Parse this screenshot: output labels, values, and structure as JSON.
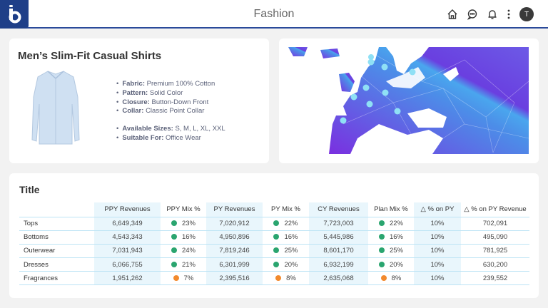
{
  "header": {
    "title": "Fashion",
    "avatar_initial": "T",
    "logo": "b"
  },
  "product": {
    "title": "Men’s Slim-Fit Casual Shirts",
    "features": [
      {
        "label": "Fabric:",
        "value": "Premium 100% Cotton"
      },
      {
        "label": "Pattern:",
        "value": "Solid Color"
      },
      {
        "label": "Closure:",
        "value": "Button-Down Front"
      },
      {
        "label": "Collar:",
        "value": "Classic Point Collar"
      }
    ],
    "extra": [
      {
        "label": "Available Sizes:",
        "value": "S, M, L, XL, XXL"
      },
      {
        "label": "Suitable For:",
        "value": "Office Wear"
      }
    ]
  },
  "table": {
    "title": "Title",
    "headers": [
      "",
      "PPY Revenues",
      "PPY Mix %",
      "PY Revenues",
      "PY Mix %",
      "CY Revenues",
      "Plan Mix %",
      "△ % on PY",
      "△ % on PY Revenue"
    ],
    "rows": [
      {
        "label": "Tops",
        "ppy": "6,649,349",
        "ppy_mix": "23%",
        "ppy_c": "green",
        "py": "7,020,912",
        "py_mix": "22%",
        "py_c": "green",
        "cy": "7,723,003",
        "plan_mix": "22%",
        "plan_c": "green",
        "d_py": "10%",
        "d_py_rev": "702,091"
      },
      {
        "label": "Bottoms",
        "ppy": "4,543,343",
        "ppy_mix": "16%",
        "ppy_c": "green",
        "py": "4,950,896",
        "py_mix": "16%",
        "py_c": "green",
        "cy": "5,445,986",
        "plan_mix": "16%",
        "plan_c": "green",
        "d_py": "10%",
        "d_py_rev": "495,090"
      },
      {
        "label": "Outerwear",
        "ppy": "7,031,943",
        "ppy_mix": "24%",
        "ppy_c": "green",
        "py": "7,819,246",
        "py_mix": "25%",
        "py_c": "green",
        "cy": "8,601,170",
        "plan_mix": "25%",
        "plan_c": "green",
        "d_py": "10%",
        "d_py_rev": "781,925"
      },
      {
        "label": "Dresses",
        "ppy": "6,066,755",
        "ppy_mix": "21%",
        "ppy_c": "green",
        "py": "6,301,999",
        "py_mix": "20%",
        "py_c": "green",
        "cy": "6,932,199",
        "plan_mix": "20%",
        "plan_c": "green",
        "d_py": "10%",
        "d_py_rev": "630,200"
      },
      {
        "label": "Fragrances",
        "ppy": "1,951,262",
        "ppy_mix": "7%",
        "ppy_c": "orange",
        "py": "2,395,516",
        "py_mix": "8%",
        "py_c": "orange",
        "cy": "2,635,068",
        "plan_mix": "8%",
        "plan_c": "orange",
        "d_py": "10%",
        "d_py_rev": "239,552"
      }
    ]
  },
  "colors": {
    "green": "#2aa56f",
    "orange": "#f28a2e",
    "brand": "#1f3f88",
    "highlight": "#e9f6fc"
  }
}
